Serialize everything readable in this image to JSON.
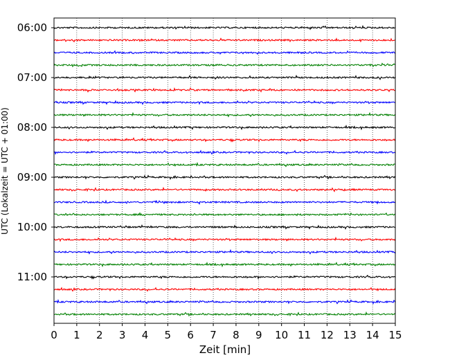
{
  "chart_data": {
    "type": "line",
    "title": "",
    "xlabel": "Zeit  [min]",
    "ylabel": "UTC (Lokalzeit = UTC + 01:00)",
    "xlim": [
      0,
      15
    ],
    "x_ticks": [
      "0",
      "1",
      "2",
      "3",
      "4",
      "5",
      "6",
      "7",
      "8",
      "9",
      "10",
      "11",
      "12",
      "13",
      "14",
      "15"
    ],
    "y_ticks": [
      {
        "hour": 6,
        "label": "06:00"
      },
      {
        "hour": 7,
        "label": "07:00"
      },
      {
        "hour": 8,
        "label": "08:00"
      },
      {
        "hour": 9,
        "label": "09:00"
      },
      {
        "hour": 10,
        "label": "10:00"
      },
      {
        "hour": 11,
        "label": "11:00"
      }
    ],
    "trace_start": "06:00",
    "trace_count": 24,
    "trace_interval_min": 15,
    "trace_colors": [
      "#000000",
      "#ff0000",
      "#0000ff",
      "#008000"
    ],
    "grid": "vertical dotted",
    "legend": "none"
  }
}
